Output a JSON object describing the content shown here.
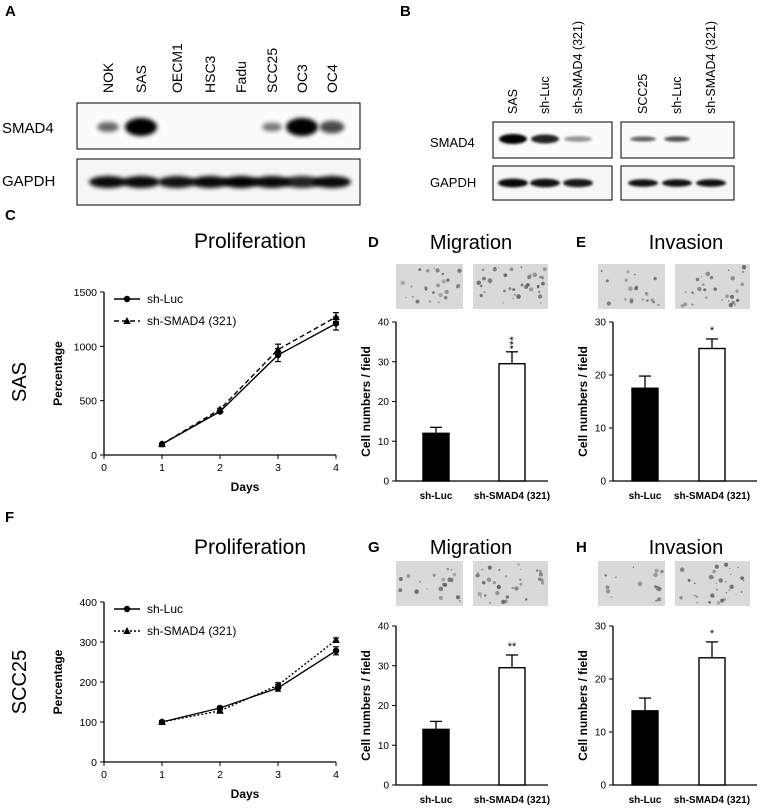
{
  "panels": {
    "A": "A",
    "B": "B",
    "C": "C",
    "D": "D",
    "E": "E",
    "F": "F",
    "G": "G",
    "H": "H"
  },
  "blot_a": {
    "lanes": [
      "NOK",
      "SAS",
      "OECM1",
      "HSC3",
      "Fadu",
      "SCC25",
      "OC3",
      "OC4"
    ],
    "rows": [
      "SMAD4",
      "GAPDH"
    ],
    "smad4_intensity": [
      0.35,
      1.0,
      0,
      0,
      0,
      0.25,
      1.0,
      0.55
    ],
    "gapdh_intensity": [
      0.95,
      0.95,
      0.9,
      0.95,
      1.0,
      0.95,
      0.8,
      0.95
    ]
  },
  "blot_b": {
    "lanes_left": [
      "SAS",
      "sh-Luc",
      "sh-SMAD4 (321)"
    ],
    "lanes_right": [
      "SCC25",
      "sh-Luc",
      "sh-SMAD4 (321)"
    ],
    "rows": [
      "SMAD4",
      "GAPDH"
    ],
    "smad4_left": [
      1.0,
      0.8,
      0.15
    ],
    "smad4_right": [
      0.45,
      0.55,
      0
    ],
    "gapdh_left": [
      0.95,
      0.9,
      0.85
    ],
    "gapdh_right": [
      0.9,
      0.9,
      0.9
    ]
  },
  "row_labels": [
    "SAS",
    "SCC25"
  ],
  "chart_data": [
    {
      "panel": "C",
      "type": "line",
      "title": "Proliferation",
      "xlabel": "Days",
      "ylabel": "Percentage",
      "x": [
        1,
        2,
        3,
        4
      ],
      "xlim": [
        0,
        4
      ],
      "xticks": [
        "0",
        "1",
        "2",
        "3",
        "4"
      ],
      "ylim": [
        0,
        1500
      ],
      "yticks": [
        "0",
        "500",
        "1000",
        "1500"
      ],
      "series": [
        {
          "name": "sh-Luc",
          "values": [
            100,
            400,
            920,
            1210
          ],
          "err": [
            5,
            10,
            60,
            60
          ],
          "marker": "circle",
          "dash": "solid"
        },
        {
          "name": "sh-SMAD4 (321)",
          "values": [
            100,
            420,
            970,
            1270
          ],
          "err": [
            5,
            10,
            50,
            40
          ],
          "marker": "triangle",
          "dash": "dashed"
        }
      ],
      "legend_position": "top-left"
    },
    {
      "panel": "D",
      "type": "bar",
      "title": "Migration",
      "ylabel": "Cell numbers / field",
      "categories": [
        "sh-Luc",
        "sh-SMAD4 (321)"
      ],
      "values": [
        12,
        29.5
      ],
      "errors": [
        1.5,
        3
      ],
      "ylim": [
        0,
        40
      ],
      "yticks": [
        "0",
        "10",
        "20",
        "30",
        "40"
      ],
      "significance": "***",
      "fills": [
        "#000000",
        "#ffffff"
      ]
    },
    {
      "panel": "E",
      "type": "bar",
      "title": "Invasion",
      "ylabel": "Cell numbers / field",
      "categories": [
        "sh-Luc",
        "sh-SMAD4 (321)"
      ],
      "values": [
        17.5,
        25
      ],
      "errors": [
        2.3,
        1.8
      ],
      "ylim": [
        0,
        30
      ],
      "yticks": [
        "0",
        "10",
        "20",
        "30"
      ],
      "significance": "*",
      "fills": [
        "#000000",
        "#ffffff"
      ]
    },
    {
      "panel": "F",
      "type": "line",
      "title": "Proliferation",
      "xlabel": "Days",
      "ylabel": "Percentage",
      "x": [
        1,
        2,
        3,
        4
      ],
      "xlim": [
        0,
        4
      ],
      "xticks": [
        "0",
        "1",
        "2",
        "3",
        "4"
      ],
      "ylim": [
        0,
        400
      ],
      "yticks": [
        "0",
        "100",
        "200",
        "300",
        "400"
      ],
      "series": [
        {
          "name": "sh-Luc",
          "values": [
            100,
            135,
            185,
            278
          ],
          "err": [
            3,
            4,
            8,
            10
          ],
          "marker": "circle",
          "dash": "solid"
        },
        {
          "name": "sh-SMAD4 (321)",
          "values": [
            100,
            128,
            192,
            305
          ],
          "err": [
            3,
            4,
            6,
            5
          ],
          "marker": "triangle",
          "dash": "dotted"
        }
      ],
      "legend_position": "top-left"
    },
    {
      "panel": "G",
      "type": "bar",
      "title": "Migration",
      "ylabel": "Cell numbers / field",
      "categories": [
        "sh-Luc",
        "sh-SMAD4 (321)"
      ],
      "values": [
        14,
        29.5
      ],
      "errors": [
        2,
        3.2
      ],
      "ylim": [
        0,
        40
      ],
      "yticks": [
        "0",
        "10",
        "20",
        "30",
        "40"
      ],
      "significance": "**",
      "fills": [
        "#000000",
        "#ffffff"
      ]
    },
    {
      "panel": "H",
      "type": "bar",
      "title": "Invasion",
      "ylabel": "Cell numbers / field",
      "categories": [
        "sh-Luc",
        "sh-SMAD4 (321)"
      ],
      "values": [
        14,
        24
      ],
      "errors": [
        2.4,
        3
      ],
      "ylim": [
        0,
        30
      ],
      "yticks": [
        "0",
        "10",
        "20",
        "30"
      ],
      "significance": "*",
      "fills": [
        "#000000",
        "#ffffff"
      ]
    }
  ]
}
